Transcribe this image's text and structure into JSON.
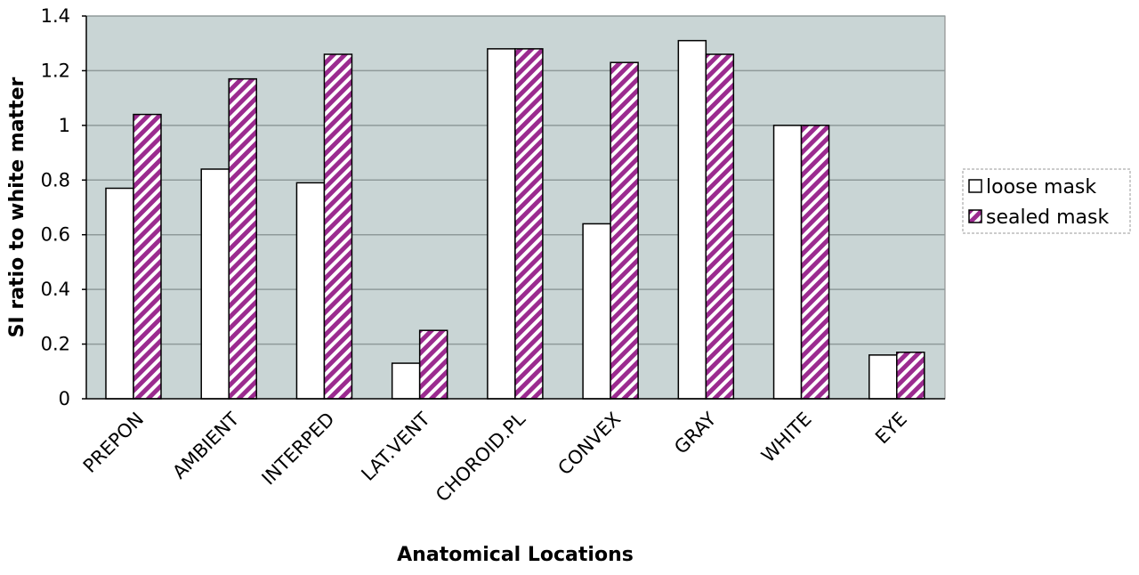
{
  "chart_data": {
    "type": "bar",
    "title": "",
    "xlabel": "Anatomical Locations",
    "ylabel": "SI ratio to white matter",
    "ylim": [
      0,
      1.4
    ],
    "yticks": [
      "0",
      "0.2",
      "0.4",
      "0.6",
      "0.8",
      "1",
      "1.2",
      "1.4"
    ],
    "ytick_values": [
      0,
      0.2,
      0.4,
      0.6,
      0.8,
      1.0,
      1.2,
      1.4
    ],
    "grid": true,
    "legend_position": "right",
    "categories": [
      "PREPON",
      "AMBIENT",
      "INTERPED",
      "LAT.VENT",
      "CHOROID.PL",
      "CONVEX",
      "GRAY",
      "WHITE",
      "EYE"
    ],
    "series": [
      {
        "name": "loose mask",
        "values": [
          0.77,
          0.84,
          0.79,
          0.13,
          1.28,
          0.64,
          1.31,
          1.0,
          0.16
        ],
        "fill": "#ffffff",
        "pattern": "none"
      },
      {
        "name": "sealed mask",
        "values": [
          1.04,
          1.17,
          1.26,
          0.25,
          1.28,
          1.23,
          1.26,
          1.0,
          0.17
        ],
        "fill": "#9b2b8f",
        "pattern": "diagonal-stripes"
      }
    ],
    "colors": {
      "plot_background": "#c9d5d5",
      "grid": "#8f9a9a",
      "stripe": "#9b2b8f"
    }
  }
}
